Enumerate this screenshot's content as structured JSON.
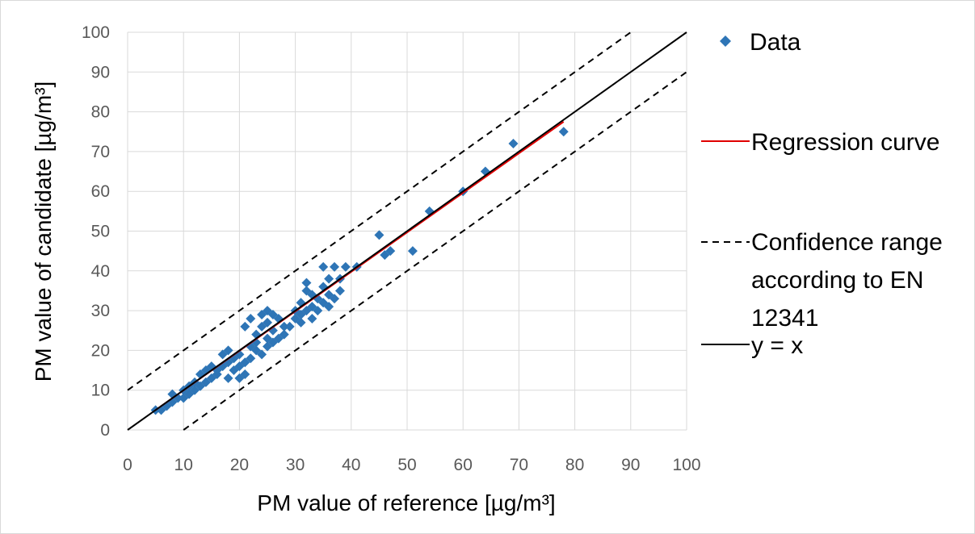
{
  "chart_data": {
    "type": "scatter",
    "xlabel": "PM value of reference [µg/m³]",
    "ylabel": "PM value of candidate [µg/m³]",
    "xlim": [
      0,
      100
    ],
    "ylim": [
      0,
      100
    ],
    "x_ticks": [
      "0",
      "10",
      "20",
      "30",
      "40",
      "50",
      "60",
      "70",
      "80",
      "90",
      "100"
    ],
    "y_ticks": [
      "0",
      "10",
      "20",
      "30",
      "40",
      "50",
      "60",
      "70",
      "80",
      "90",
      "100"
    ],
    "grid": true,
    "legend_position": "right",
    "series": [
      {
        "name": "Data",
        "kind": "scatter",
        "marker": "diamond",
        "color": "#2E75B6",
        "points": [
          [
            5,
            5
          ],
          [
            6,
            5
          ],
          [
            7,
            6
          ],
          [
            8,
            7
          ],
          [
            8,
            9
          ],
          [
            9,
            8
          ],
          [
            10,
            8
          ],
          [
            10,
            10
          ],
          [
            11,
            9
          ],
          [
            11,
            11
          ],
          [
            12,
            10
          ],
          [
            12,
            12
          ],
          [
            13,
            11
          ],
          [
            13,
            14
          ],
          [
            14,
            12
          ],
          [
            14,
            15
          ],
          [
            15,
            13
          ],
          [
            15,
            16
          ],
          [
            16,
            14
          ],
          [
            16,
            15
          ],
          [
            17,
            16
          ],
          [
            17,
            19
          ],
          [
            18,
            17
          ],
          [
            18,
            20
          ],
          [
            18,
            13
          ],
          [
            19,
            15
          ],
          [
            19,
            18
          ],
          [
            20,
            16
          ],
          [
            20,
            13
          ],
          [
            20,
            19
          ],
          [
            21,
            17
          ],
          [
            21,
            26
          ],
          [
            21,
            14
          ],
          [
            22,
            18
          ],
          [
            22,
            21
          ],
          [
            22,
            28
          ],
          [
            23,
            20
          ],
          [
            23,
            22
          ],
          [
            23,
            24
          ],
          [
            24,
            19
          ],
          [
            24,
            26
          ],
          [
            24,
            29
          ],
          [
            25,
            21
          ],
          [
            25,
            23
          ],
          [
            25,
            27
          ],
          [
            25,
            30
          ],
          [
            26,
            22
          ],
          [
            26,
            25
          ],
          [
            26,
            29
          ],
          [
            27,
            23
          ],
          [
            27,
            28
          ],
          [
            28,
            24
          ],
          [
            28,
            26
          ],
          [
            29,
            26
          ],
          [
            30,
            28
          ],
          [
            30,
            30
          ],
          [
            31,
            27
          ],
          [
            31,
            29
          ],
          [
            31,
            32
          ],
          [
            32,
            30
          ],
          [
            32,
            35
          ],
          [
            32,
            37
          ],
          [
            33,
            28
          ],
          [
            33,
            31
          ],
          [
            33,
            34
          ],
          [
            34,
            30
          ],
          [
            34,
            33
          ],
          [
            35,
            32
          ],
          [
            35,
            36
          ],
          [
            35,
            41
          ],
          [
            36,
            31
          ],
          [
            36,
            34
          ],
          [
            36,
            38
          ],
          [
            37,
            33
          ],
          [
            37,
            41
          ],
          [
            38,
            35
          ],
          [
            38,
            38
          ],
          [
            39,
            41
          ],
          [
            41,
            41
          ],
          [
            45,
            49
          ],
          [
            46,
            44
          ],
          [
            47,
            45
          ],
          [
            51,
            45
          ],
          [
            54,
            55
          ],
          [
            60,
            60
          ],
          [
            64,
            65
          ],
          [
            69,
            72
          ],
          [
            78,
            75
          ]
        ]
      },
      {
        "name": "Regression curve",
        "kind": "line",
        "color": "#e00000",
        "points": [
          [
            5,
            5
          ],
          [
            78,
            77.5
          ]
        ]
      },
      {
        "name": "Confidence range according to EN 12341",
        "kind": "dashed-lines",
        "color": "#000000",
        "lines": [
          [
            [
              0,
              10
            ],
            [
              90,
              100
            ]
          ],
          [
            [
              10,
              0
            ],
            [
              100,
              90
            ]
          ]
        ]
      },
      {
        "name": "y = x",
        "kind": "line",
        "color": "#000000",
        "points": [
          [
            0,
            0
          ],
          [
            100,
            100
          ]
        ]
      }
    ]
  },
  "legend": {
    "items": [
      {
        "label_lines": [
          "Data"
        ]
      },
      {
        "label_lines": [
          "Regression curve"
        ]
      },
      {
        "label_lines": [
          "Confidence range",
          "according to EN",
          "12341"
        ]
      },
      {
        "label_lines": [
          "y = x"
        ]
      }
    ]
  }
}
